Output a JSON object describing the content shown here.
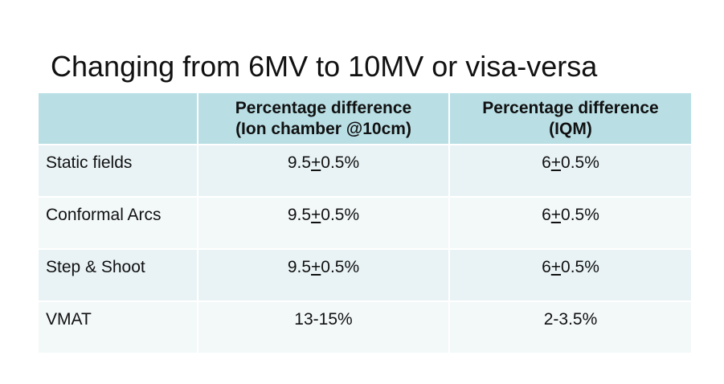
{
  "title": "Changing from 6MV to 10MV or visa-versa",
  "table": {
    "header": [
      null,
      [
        "Percentage difference",
        "(Ion chamber @10cm)"
      ],
      [
        "Percentage difference",
        "(IQM)"
      ]
    ],
    "rows": [
      [
        "Static fields",
        [
          "9.5",
          "+",
          "0.5%"
        ],
        [
          "6",
          "+",
          "0.5%"
        ]
      ],
      [
        "Conformal Arcs",
        [
          "9.5",
          "+",
          "0.5%"
        ],
        [
          "6",
          "+",
          "0.5%"
        ]
      ],
      [
        "Step & Shoot",
        [
          "9.5",
          "+",
          "0.5%"
        ],
        [
          "6",
          "+",
          "0.5%"
        ]
      ],
      [
        "VMAT",
        "13-15%",
        "2-3.5%"
      ]
    ]
  }
}
